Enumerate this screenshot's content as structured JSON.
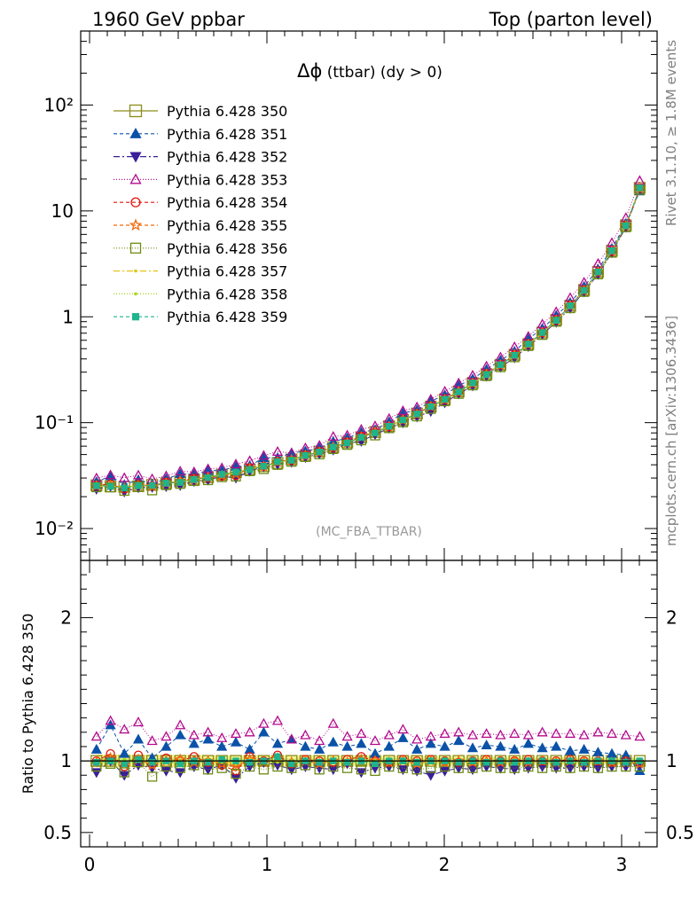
{
  "header": {
    "left": "1960 GeV ppbar",
    "right": "Top (parton level)"
  },
  "side_labels": {
    "rivet": "Rivet 3.1.10, ≥ 1.8M events",
    "mcplots": "mcplots.cern.ch [arXiv:1306.3436]"
  },
  "chart_data": [
    {
      "type": "scatter",
      "title": "Δϕ (ttbar) (dy > 0)",
      "title_parts": {
        "symbol": "Δϕ",
        "rest": " (ttbar) (dy > 0)"
      },
      "watermark": "(MC_FBA_TTBAR)",
      "log_y": true,
      "xlim": [
        -0.05,
        3.2
      ],
      "ylim": [
        0.005,
        500
      ],
      "y_tick_labels": [
        "10⁻²",
        "10⁻¹",
        "1",
        "10",
        "10²"
      ],
      "x_tick_labels": [
        "0",
        "1",
        "2",
        "3"
      ],
      "x": [
        0.039,
        0.118,
        0.196,
        0.275,
        0.353,
        0.432,
        0.511,
        0.589,
        0.668,
        0.746,
        0.825,
        0.903,
        0.982,
        1.06,
        1.139,
        1.217,
        1.296,
        1.374,
        1.453,
        1.532,
        1.61,
        1.689,
        1.767,
        1.846,
        1.924,
        2.003,
        2.081,
        2.16,
        2.238,
        2.317,
        2.396,
        2.474,
        2.553,
        2.631,
        2.71,
        2.788,
        2.867,
        2.945,
        3.024,
        3.102
      ],
      "reference_values": [
        0.0256,
        0.025,
        0.0247,
        0.0251,
        0.0258,
        0.0268,
        0.0278,
        0.029,
        0.0305,
        0.0322,
        0.0341,
        0.0363,
        0.0388,
        0.0416,
        0.045,
        0.0489,
        0.0534,
        0.0587,
        0.065,
        0.0725,
        0.0815,
        0.0925,
        0.106,
        0.122,
        0.142,
        0.166,
        0.197,
        0.237,
        0.287,
        0.352,
        0.437,
        0.552,
        0.71,
        0.935,
        1.27,
        1.79,
        2.65,
        4.2,
        7.3,
        16.5
      ],
      "series": [
        {
          "name": "Pythia 6.428 350",
          "color": "#8c8c1a",
          "marker": "square-open",
          "dash": "solid",
          "ratio": [
            1.0,
            1.0,
            1.0,
            1.0,
            1.0,
            1.0,
            1.0,
            1.0,
            1.0,
            1.0,
            1.0,
            1.0,
            1.0,
            1.0,
            1.0,
            1.0,
            1.0,
            1.0,
            1.0,
            1.0,
            1.0,
            1.0,
            1.0,
            1.0,
            1.0,
            1.0,
            1.0,
            1.0,
            1.0,
            1.0,
            1.0,
            1.0,
            1.0,
            1.0,
            1.0,
            1.0,
            1.0,
            1.0,
            1.0,
            1.0
          ]
        },
        {
          "name": "Pythia 6.428 351",
          "color": "#0b52a8",
          "marker": "triangle-up",
          "dash": "4,3",
          "ratio": [
            1.08,
            1.25,
            1.05,
            1.15,
            1.02,
            1.1,
            1.18,
            1.12,
            1.15,
            1.1,
            1.13,
            1.08,
            1.2,
            1.12,
            1.15,
            1.1,
            1.08,
            1.13,
            1.1,
            1.12,
            1.05,
            1.1,
            1.16,
            1.08,
            1.12,
            1.1,
            1.14,
            1.09,
            1.11,
            1.1,
            1.08,
            1.12,
            1.09,
            1.1,
            1.07,
            1.08,
            1.06,
            1.05,
            1.04,
            0.93
          ]
        },
        {
          "name": "Pythia 6.428 352",
          "color": "#3a1e9a",
          "marker": "triangle-down",
          "dash": "7,3,2,3",
          "ratio": [
            0.92,
            1.0,
            0.9,
            0.97,
            0.95,
            0.93,
            0.92,
            0.96,
            0.94,
            0.97,
            0.88,
            0.96,
            0.99,
            0.97,
            0.94,
            0.96,
            0.95,
            0.94,
            0.98,
            0.92,
            0.95,
            0.96,
            0.94,
            0.93,
            0.9,
            0.93,
            0.95,
            0.94,
            0.96,
            0.95,
            0.94,
            0.95,
            0.96,
            0.95,
            0.95,
            0.96,
            0.95,
            0.96,
            0.96,
            0.97
          ]
        },
        {
          "name": "Pythia 6.428 353",
          "color": "#b40a8c",
          "marker": "triangle-up-open",
          "dash": "1,2",
          "ratio": [
            1.17,
            1.28,
            1.22,
            1.27,
            1.14,
            1.17,
            1.25,
            1.18,
            1.2,
            1.16,
            1.19,
            1.2,
            1.26,
            1.28,
            1.15,
            1.18,
            1.14,
            1.26,
            1.17,
            1.19,
            1.14,
            1.18,
            1.22,
            1.15,
            1.17,
            1.19,
            1.2,
            1.18,
            1.19,
            1.18,
            1.19,
            1.18,
            1.2,
            1.19,
            1.19,
            1.18,
            1.2,
            1.19,
            1.18,
            1.17
          ]
        },
        {
          "name": "Pythia 6.428 354",
          "color": "#e3120b",
          "marker": "circle-open",
          "dash": "4,3",
          "ratio": [
            1.0,
            1.05,
            0.96,
            1.04,
            0.98,
            1.02,
            1.0,
            1.03,
            0.99,
            0.97,
            0.93,
            1.03,
            1.0,
            1.04,
            0.98,
            1.01,
            1.0,
            0.99,
            1.01,
            1.03,
            1.0,
            0.99,
            1.01,
            1.0,
            1.01,
            1.0,
            0.99,
            1.0,
            1.01,
            1.0,
            1.0,
            1.01,
            1.0,
            1.0,
            1.01,
            1.0,
            1.0,
            0.99,
            1.0,
            0.99
          ]
        },
        {
          "name": "Pythia 6.428 355",
          "color": "#f2680a",
          "marker": "star-open",
          "dash": "4,3",
          "ratio": [
            0.99,
            1.02,
            0.98,
            1.01,
            0.97,
            1.0,
            1.01,
            0.99,
            1.0,
            0.98,
            0.96,
            1.01,
            0.99,
            1.02,
            0.99,
            1.0,
            0.98,
            1.0,
            0.99,
            1.01,
            1.0,
            0.99,
            1.0,
            0.98,
            1.0,
            0.99,
            1.0,
            0.99,
            1.0,
            0.99,
            1.0,
            0.99,
            1.0,
            0.99,
            1.0,
            0.99,
            1.0,
            0.99,
            0.99,
            0.98
          ]
        },
        {
          "name": "Pythia 6.428 356",
          "color": "#6c8c14",
          "marker": "square-open",
          "dash": "1,2",
          "ratio": [
            0.96,
            0.98,
            0.92,
            0.99,
            0.89,
            0.96,
            0.95,
            0.97,
            0.94,
            0.95,
            0.91,
            0.96,
            0.94,
            0.96,
            0.95,
            0.97,
            0.94,
            0.96,
            0.95,
            0.94,
            0.93,
            0.96,
            0.95,
            0.94,
            0.95,
            0.96,
            0.95,
            0.95,
            0.96,
            0.95,
            0.95,
            0.96,
            0.95,
            0.96,
            0.95,
            0.96,
            0.95,
            0.96,
            0.96,
            0.96
          ]
        },
        {
          "name": "Pythia 6.428 357",
          "color": "#e6c417",
          "marker": "dot",
          "dash": "7,3,2,3",
          "ratio": [
            0.98,
            1.01,
            0.99,
            1.02,
            0.98,
            1.0,
            0.99,
            1.01,
            1.0,
            0.99,
            0.98,
            1.01,
            1.0,
            1.01,
            0.99,
            1.0,
            0.99,
            1.01,
            1.0,
            1.0,
            0.99,
            1.0,
            1.01,
            1.0,
            0.99,
            1.0,
            1.0,
            0.99,
            1.0,
            1.0,
            0.99,
            1.0,
            1.0,
            0.99,
            1.0,
            1.0,
            0.99,
            1.0,
            0.99,
            0.99
          ]
        },
        {
          "name": "Pythia 6.428 358",
          "color": "#a6d619",
          "marker": "dot",
          "dash": "1,2",
          "ratio": [
            1.0,
            0.99,
            1.01,
            1.0,
            0.99,
            1.01,
            1.0,
            0.99,
            1.01,
            1.0,
            0.99,
            1.0,
            1.01,
            0.99,
            1.0,
            1.01,
            1.0,
            0.99,
            1.0,
            1.01,
            1.0,
            0.99,
            1.0,
            1.0,
            1.01,
            1.0,
            0.99,
            1.0,
            1.0,
            1.01,
            1.0,
            0.99,
            1.0,
            1.0,
            1.0,
            0.99,
            1.0,
            1.0,
            1.0,
            1.0
          ]
        },
        {
          "name": "Pythia 6.428 359",
          "color": "#1fb48c",
          "marker": "square",
          "dash": "4,3",
          "ratio": [
            0.99,
            1.0,
            0.98,
            1.01,
            0.99,
            1.0,
            0.98,
            1.0,
            0.99,
            1.01,
            1.0,
            0.99,
            1.0,
            1.03,
            0.98,
            1.0,
            0.99,
            1.0,
            0.99,
            1.0,
            0.98,
            1.0,
            1.0,
            0.99,
            1.0,
            1.0,
            0.99,
            1.0,
            0.99,
            1.0,
            0.99,
            1.0,
            1.0,
            0.99,
            1.0,
            0.99,
            1.0,
            1.0,
            0.99,
            1.0
          ]
        }
      ]
    },
    {
      "type": "scatter",
      "ylabel": "Ratio to Pythia 6.428 350",
      "ylim": [
        0.4,
        2.4
      ],
      "y_tick_labels": [
        "0.5",
        "1",
        "2"
      ],
      "y_tick_values": [
        0.5,
        1,
        2
      ],
      "x_tick_labels": [
        "0",
        "1",
        "2",
        "3"
      ],
      "x_tick_values": [
        0,
        1,
        2,
        3
      ],
      "reference_band": "yellow-green uncertainty band around 1",
      "reference_line": 1
    }
  ]
}
